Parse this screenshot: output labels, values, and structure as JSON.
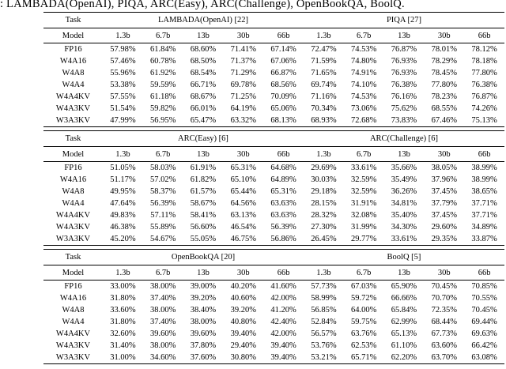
{
  "caption": ": LAMBADA(OpenAI), PIQA, ARC(Easy), ARC(Challenge), OpenBookQA, BoolQ.",
  "table": {
    "task_label": "Task",
    "model_label": "Model",
    "size_columns": [
      "1.3b",
      "6.7b",
      "13b",
      "30b",
      "66b"
    ],
    "sections": [
      {
        "groups": [
          "LAMBADA(OpenAI) [22]",
          "PIQA [27]"
        ],
        "rows": [
          {
            "model": "FP16",
            "values": [
              "57.98%",
              "61.84%",
              "68.60%",
              "71.41%",
              "67.14%",
              "72.47%",
              "74.53%",
              "76.87%",
              "78.01%",
              "78.12%"
            ]
          },
          {
            "model": "W4A16",
            "values": [
              "57.46%",
              "60.78%",
              "68.50%",
              "71.37%",
              "67.06%",
              "71.59%",
              "74.80%",
              "76.93%",
              "78.29%",
              "78.18%"
            ]
          },
          {
            "model": "W4A8",
            "values": [
              "55.96%",
              "61.92%",
              "68.54%",
              "71.29%",
              "66.87%",
              "71.65%",
              "74.91%",
              "76.93%",
              "78.45%",
              "77.80%"
            ]
          },
          {
            "model": "W4A4",
            "values": [
              "53.38%",
              "59.59%",
              "66.71%",
              "69.78%",
              "68.56%",
              "69.74%",
              "74.10%",
              "76.38%",
              "77.80%",
              "76.38%"
            ]
          },
          {
            "model": "W4A4KV",
            "values": [
              "57.55%",
              "61.18%",
              "68.67%",
              "71.25%",
              "70.09%",
              "71.16%",
              "74.53%",
              "76.16%",
              "78.23%",
              "76.87%"
            ]
          },
          {
            "model": "W4A3KV",
            "values": [
              "51.54%",
              "59.82%",
              "66.01%",
              "64.19%",
              "65.06%",
              "70.34%",
              "73.06%",
              "75.62%",
              "68.55%",
              "74.26%"
            ]
          },
          {
            "model": "W3A3KV",
            "values": [
              "47.99%",
              "56.95%",
              "65.47%",
              "63.32%",
              "68.13%",
              "68.93%",
              "72.68%",
              "73.83%",
              "67.46%",
              "75.13%"
            ]
          }
        ]
      },
      {
        "groups": [
          "ARC(Easy) [6]",
          "ARC(Challenge) [6]"
        ],
        "rows": [
          {
            "model": "FP16",
            "values": [
              "51.05%",
              "58.03%",
              "61.91%",
              "65.31%",
              "64.68%",
              "29.69%",
              "33.61%",
              "35.66%",
              "38.05%",
              "38.99%"
            ]
          },
          {
            "model": "W4A16",
            "values": [
              "51.17%",
              "57.02%",
              "61.82%",
              "65.10%",
              "64.89%",
              "30.03%",
              "32.59%",
              "35.49%",
              "37.96%",
              "38.99%"
            ]
          },
          {
            "model": "W4A8",
            "values": [
              "49.95%",
              "58.37%",
              "61.57%",
              "65.44%",
              "65.31%",
              "29.18%",
              "32.59%",
              "36.26%",
              "37.45%",
              "38.65%"
            ]
          },
          {
            "model": "W4A4",
            "values": [
              "47.64%",
              "56.39%",
              "58.67%",
              "64.56%",
              "63.63%",
              "28.15%",
              "31.91%",
              "34.81%",
              "37.79%",
              "37.71%"
            ]
          },
          {
            "model": "W4A4KV",
            "values": [
              "49.83%",
              "57.11%",
              "58.41%",
              "63.13%",
              "63.63%",
              "28.32%",
              "32.08%",
              "35.40%",
              "37.45%",
              "37.71%"
            ]
          },
          {
            "model": "W4A3KV",
            "values": [
              "46.38%",
              "55.89%",
              "56.60%",
              "46.54%",
              "56.39%",
              "27.30%",
              "31.99%",
              "34.30%",
              "29.60%",
              "34.89%"
            ]
          },
          {
            "model": "W3A3KV",
            "values": [
              "45.20%",
              "54.67%",
              "55.05%",
              "46.75%",
              "56.86%",
              "26.45%",
              "29.77%",
              "33.61%",
              "29.35%",
              "33.87%"
            ]
          }
        ]
      },
      {
        "groups": [
          "OpenBookQA [20]",
          "BoolQ [5]"
        ],
        "rows": [
          {
            "model": "FP16",
            "values": [
              "33.00%",
              "38.00%",
              "39.00%",
              "40.20%",
              "41.60%",
              "57.73%",
              "67.03%",
              "65.90%",
              "70.45%",
              "70.85%"
            ]
          },
          {
            "model": "W4A16",
            "values": [
              "31.80%",
              "37.40%",
              "39.20%",
              "40.60%",
              "42.00%",
              "58.99%",
              "59.72%",
              "66.66%",
              "70.70%",
              "70.55%"
            ]
          },
          {
            "model": "W4A8",
            "values": [
              "33.60%",
              "38.00%",
              "38.40%",
              "39.20%",
              "41.20%",
              "56.85%",
              "64.00%",
              "65.84%",
              "72.35%",
              "70.45%"
            ]
          },
          {
            "model": "W4A4",
            "values": [
              "31.80%",
              "37.40%",
              "38.00%",
              "40.80%",
              "42.40%",
              "52.84%",
              "59.75%",
              "62.99%",
              "68.44%",
              "69.44%"
            ]
          },
          {
            "model": "W4A4KV",
            "values": [
              "32.60%",
              "39.60%",
              "39.60%",
              "39.40%",
              "42.00%",
              "56.57%",
              "63.76%",
              "65.13%",
              "67.73%",
              "69.63%"
            ]
          },
          {
            "model": "W4A3KV",
            "values": [
              "31.40%",
              "38.00%",
              "37.80%",
              "29.40%",
              "39.40%",
              "53.76%",
              "62.53%",
              "61.10%",
              "63.60%",
              "66.42%"
            ]
          },
          {
            "model": "W3A3KV",
            "values": [
              "31.00%",
              "34.60%",
              "37.60%",
              "30.80%",
              "39.40%",
              "53.21%",
              "65.71%",
              "62.20%",
              "63.70%",
              "63.08%"
            ]
          }
        ]
      }
    ]
  }
}
